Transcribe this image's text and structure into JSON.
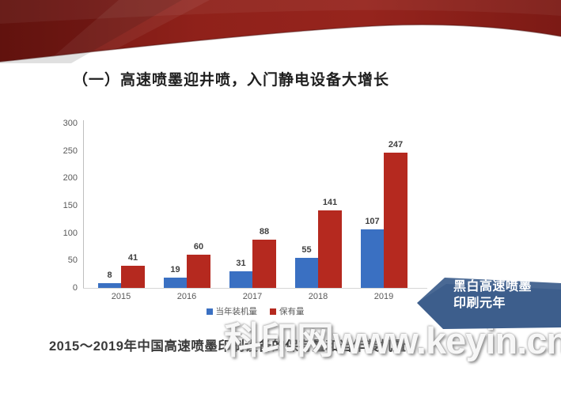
{
  "slide": {
    "title": "（一）高速喷墨迎井喷，入门静电设备大增长",
    "caption": "2015～2019年中国高速喷墨印刷设备的保有量和当年装机量",
    "watermark": "科印网www.keyin.cn",
    "callout": {
      "line1": "黑白高速喷墨",
      "line2": "印刷元年",
      "color": "#3d5e8c"
    }
  },
  "chart_data": {
    "type": "bar",
    "categories": [
      "2015",
      "2016",
      "2017",
      "2018",
      "2019"
    ],
    "series": [
      {
        "name": "当年装机量",
        "color": "#3a70c2",
        "values": [
          8,
          19,
          31,
          55,
          107
        ]
      },
      {
        "name": "保有量",
        "color": "#b5291f",
        "values": [
          41,
          60,
          88,
          141,
          247
        ]
      }
    ],
    "title": "",
    "xlabel": "",
    "ylabel": "",
    "ylim": [
      0,
      300
    ],
    "yticks": [
      0,
      50,
      100,
      150,
      200,
      250,
      300
    ],
    "grid": false,
    "legend_position": "bottom"
  },
  "colors": {
    "ribbon_dark": "#6f1511",
    "ribbon_mid": "#96241d",
    "bar_blue": "#3a70c2",
    "bar_red": "#b5291f",
    "callout_blue": "#3d5e8c",
    "axis_text": "#595959"
  }
}
